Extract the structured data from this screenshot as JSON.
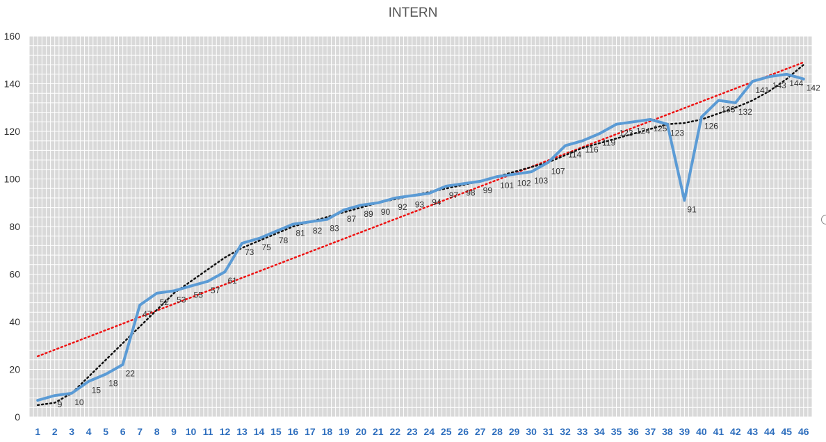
{
  "chart_data": {
    "type": "line",
    "title": "INTERN",
    "xlabel": "",
    "ylabel": "",
    "x": [
      1,
      2,
      3,
      4,
      5,
      6,
      7,
      8,
      9,
      10,
      11,
      12,
      13,
      14,
      15,
      16,
      17,
      18,
      19,
      20,
      21,
      22,
      23,
      24,
      25,
      26,
      27,
      28,
      29,
      30,
      31,
      32,
      33,
      34,
      35,
      36,
      37,
      38,
      39,
      40,
      41,
      42,
      43,
      44,
      45,
      46
    ],
    "series": [
      {
        "values": [
          7,
          9,
          10,
          15,
          18,
          22,
          47,
          52,
          53,
          55,
          57,
          61,
          73,
          75,
          78,
          81,
          82,
          83,
          87,
          89,
          90,
          92,
          93,
          94,
          97,
          98,
          99,
          101,
          102,
          103,
          107,
          114,
          116,
          119,
          123,
          124,
          125,
          123,
          91,
          126,
          133,
          132,
          141,
          143,
          144,
          142
        ],
        "labels": [
          "",
          "9",
          "10",
          "15",
          "18",
          "22",
          "47",
          "52",
          "53",
          "55",
          "57",
          "61",
          "73",
          "75",
          "78",
          "81",
          "82",
          "83",
          "87",
          "89",
          "90",
          "92",
          "93",
          "94",
          "97",
          "98",
          "99",
          "101",
          "102",
          "103",
          "107",
          "114",
          "116",
          "119",
          "123",
          "124",
          "125",
          "123",
          "91",
          "126",
          "133",
          "132",
          "141",
          "143",
          "144",
          "142"
        ],
        "color": "#5b9bd5"
      }
    ],
    "trendlines": [
      {
        "type": "linear",
        "color": "#ee1111",
        "start": 25.5,
        "end": 149
      },
      {
        "type": "polynomial",
        "color": "#111111",
        "values": [
          5,
          6,
          10,
          17,
          24,
          31,
          38,
          45,
          52,
          57,
          62,
          67,
          71,
          74,
          77,
          80,
          82,
          84,
          86,
          88,
          90,
          91.5,
          93,
          94.5,
          96,
          97.5,
          99,
          101,
          103,
          105,
          107,
          110,
          113,
          115,
          117,
          119,
          121,
          123,
          123.5,
          125,
          127.5,
          130,
          133,
          137,
          142,
          148
        ]
      }
    ],
    "ylim": [
      0,
      160
    ],
    "yticks": [
      0,
      20,
      40,
      60,
      80,
      100,
      120,
      140,
      160
    ],
    "grid": true,
    "legend": "none",
    "plot_background": "#d9d9d9",
    "grid_color": "#ffffff"
  }
}
